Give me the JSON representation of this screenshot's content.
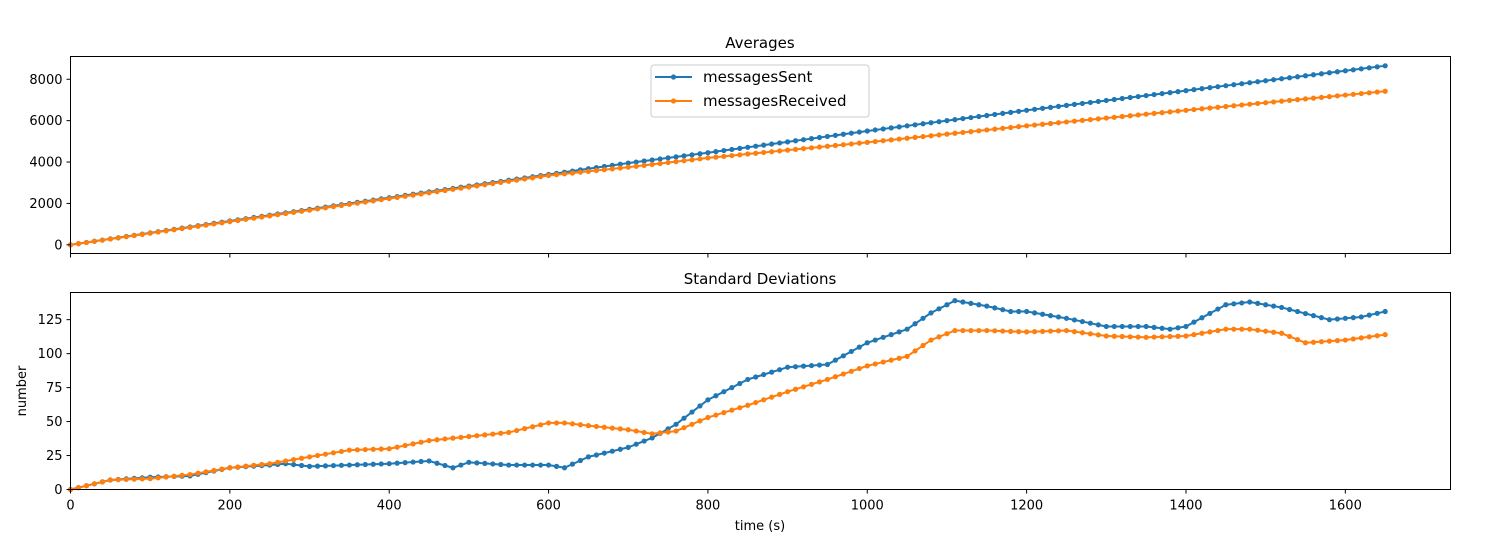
{
  "chart_data": [
    {
      "type": "line",
      "title": "Averages",
      "xlabel": "",
      "ylabel": "",
      "xlim": [
        0,
        1732
      ],
      "ylim": [
        -420,
        9100
      ],
      "x_ticks": [
        0,
        200,
        400,
        600,
        800,
        1000,
        1200,
        1400,
        1600
      ],
      "x_tick_labels_shown": false,
      "y_ticks": [
        0,
        2000,
        4000,
        6000,
        8000
      ],
      "y_tick_labels": [
        "0",
        "2000",
        "4000",
        "6000",
        "8000"
      ],
      "grid": false,
      "legend": {
        "placement": "upper center",
        "entries": [
          "messagesSent",
          "messagesReceived"
        ]
      },
      "x": {
        "start": 0,
        "step": 10,
        "end": 1650
      },
      "series": [
        {
          "name": "messagesSent",
          "color": "#1f77b4",
          "anchors_x": [
            0,
            200,
            600,
            700,
            800,
            1000,
            1200,
            1400,
            1650
          ],
          "anchors_y": [
            0,
            1150,
            3400,
            3950,
            4450,
            5500,
            6500,
            7450,
            8650
          ]
        },
        {
          "name": "messagesReceived",
          "color": "#ff7f0e",
          "anchors_x": [
            0,
            200,
            600,
            700,
            800,
            1000,
            1200,
            1400,
            1650
          ],
          "anchors_y": [
            0,
            1120,
            3350,
            3750,
            4200,
            4950,
            5750,
            6500,
            7420
          ]
        }
      ]
    },
    {
      "type": "line",
      "title": "Standard Deviations",
      "xlabel": "time (s)",
      "ylabel": "number",
      "xlim": [
        0,
        1732
      ],
      "ylim": [
        0,
        145
      ],
      "x_ticks": [
        0,
        200,
        400,
        600,
        800,
        1000,
        1200,
        1400,
        1600
      ],
      "x_tick_labels": [
        "0",
        "200",
        "400",
        "600",
        "800",
        "1000",
        "1200",
        "1400",
        "1600"
      ],
      "y_ticks": [
        0,
        25,
        50,
        75,
        100,
        125
      ],
      "y_tick_labels": [
        "0",
        "25",
        "50",
        "75",
        "100",
        "125"
      ],
      "grid": false,
      "x": {
        "start": 0,
        "step": 10,
        "end": 1650
      },
      "series": [
        {
          "name": "messagesSent",
          "color": "#1f77b4",
          "anchors_x": [
            0,
            50,
            100,
            150,
            200,
            250,
            270,
            300,
            350,
            400,
            450,
            480,
            500,
            550,
            600,
            620,
            650,
            700,
            730,
            760,
            800,
            850,
            900,
            950,
            1000,
            1050,
            1080,
            1110,
            1150,
            1180,
            1200,
            1250,
            1300,
            1350,
            1380,
            1400,
            1450,
            1480,
            1520,
            1560,
            1580,
            1600,
            1620,
            1650
          ],
          "anchors_y": [
            0,
            7,
            9,
            10,
            16,
            18,
            19,
            17,
            18,
            19,
            21,
            16,
            20,
            18,
            18,
            16,
            24,
            31,
            38,
            48,
            66,
            81,
            90,
            92,
            108,
            118,
            130,
            139,
            135,
            131,
            131,
            126,
            120,
            120,
            118,
            120,
            136,
            138,
            134,
            128,
            125,
            126,
            127,
            131
          ]
        },
        {
          "name": "messagesReceived",
          "color": "#ff7f0e",
          "anchors_x": [
            0,
            50,
            100,
            150,
            200,
            250,
            300,
            350,
            400,
            450,
            500,
            550,
            600,
            620,
            650,
            700,
            730,
            760,
            800,
            850,
            900,
            950,
            1000,
            1050,
            1080,
            1110,
            1150,
            1200,
            1250,
            1300,
            1350,
            1400,
            1450,
            1480,
            1520,
            1550,
            1600,
            1650
          ],
          "anchors_y": [
            0,
            7,
            8,
            11,
            16,
            19,
            24,
            29,
            30,
            36,
            39,
            42,
            49,
            49,
            47,
            44,
            41,
            43,
            53,
            62,
            72,
            81,
            91,
            98,
            110,
            117,
            117,
            116,
            117,
            113,
            112,
            113,
            118,
            118,
            115,
            108,
            110,
            114
          ]
        }
      ]
    }
  ]
}
